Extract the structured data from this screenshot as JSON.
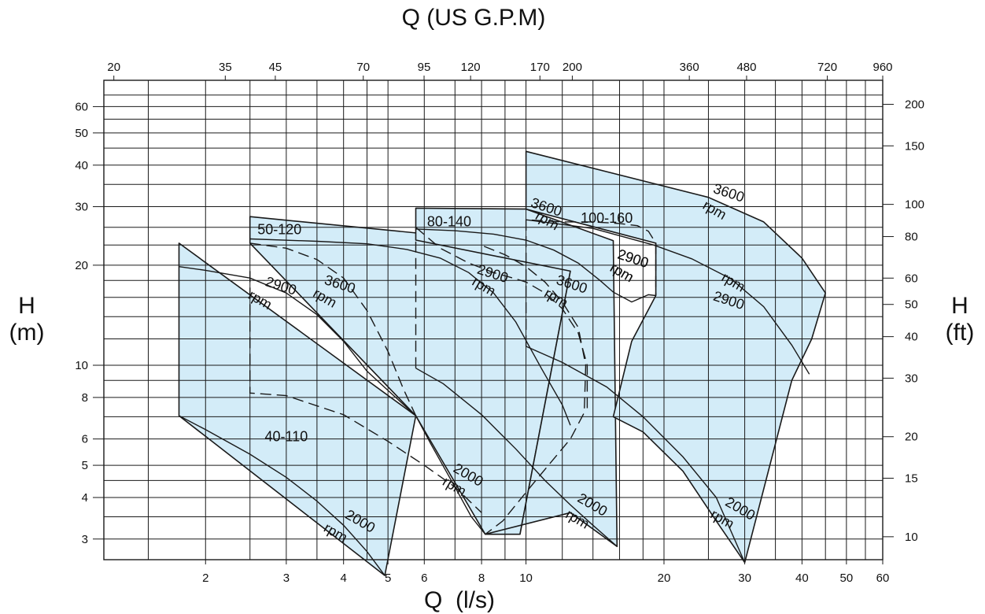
{
  "chart_data": {
    "type": "line",
    "title": "Q (US G.P.M)",
    "xlabel": "Q  (l/s)",
    "ylabel_left": "H",
    "ylabel_left_unit": "(m)",
    "ylabel_right": "H",
    "ylabel_right_unit": "(ft)",
    "x_scale": "log",
    "y_scale": "log",
    "xlim": [
      1.2,
      60
    ],
    "ylim": [
      2.6,
      72
    ],
    "grid": true,
    "fill_color": "#d3ecf8",
    "line_color": "#1a1a1a",
    "x_bottom_ticks": [
      "2",
      "3",
      "4",
      "5",
      "6",
      "8",
      "10",
      "20",
      "30",
      "40",
      "50",
      "60"
    ],
    "x_top_ticks": [
      "20",
      "35",
      "45",
      "70",
      "95",
      "120",
      "170",
      "200",
      "360",
      "480",
      "720",
      "960"
    ],
    "y_left_ticks": [
      "3",
      "4",
      "5",
      "6",
      "8",
      "10",
      "20",
      "30",
      "40",
      "50",
      "60"
    ],
    "y_right_ticks": [
      "10",
      "15",
      "20",
      "30",
      "40",
      "50",
      "60",
      "80",
      "100",
      "150",
      "200"
    ],
    "models": [
      {
        "name": "40-110",
        "label": "40-110",
        "region": [
          [
            1.75,
            23.3
          ],
          [
            5.75,
            7.05
          ],
          [
            4.92,
            2.33
          ],
          [
            1.75,
            7.05
          ]
        ],
        "curves": [
          {
            "speed": "3600",
            "style": "dashed",
            "points": [
              [
                2.5,
                23.3
              ],
              [
                3.0,
                22.5
              ],
              [
                3.5,
                20.8
              ],
              [
                4.0,
                18.3
              ],
              [
                4.5,
                14.6
              ],
              [
                5.0,
                11.0
              ],
              [
                5.4,
                8.5
              ],
              [
                5.75,
                7.05
              ]
            ]
          },
          {
            "speed": "2900",
            "style": "solid",
            "points": [
              [
                1.75,
                19.8
              ],
              [
                2.0,
                19.3
              ],
              [
                2.5,
                18.3
              ],
              [
                3.0,
                16.5
              ],
              [
                3.5,
                14.2
              ],
              [
                4.0,
                11.8
              ],
              [
                4.5,
                9.6
              ],
              [
                5.0,
                8.4
              ],
              [
                5.75,
                7.05
              ]
            ]
          },
          {
            "speed": "2000",
            "style": "solid",
            "points": [
              [
                1.75,
                7.05
              ],
              [
                2.0,
                6.4
              ],
              [
                2.5,
                5.4
              ],
              [
                3.0,
                4.6
              ],
              [
                3.5,
                3.9
              ],
              [
                4.0,
                3.3
              ],
              [
                4.5,
                2.75
              ],
              [
                4.92,
                2.33
              ]
            ]
          }
        ],
        "speed_labels": [
          {
            "text": "3600",
            "x": 3.9,
            "y": 17.0
          },
          {
            "text": "rpm",
            "x": 3.6,
            "y": 15.5
          },
          {
            "text": "2900",
            "x": 2.9,
            "y": 16.8
          },
          {
            "text": "rpm",
            "x": 2.6,
            "y": 15.3
          },
          {
            "text": "2000",
            "x": 4.3,
            "y": 3.3
          },
          {
            "text": "rpm",
            "x": 3.8,
            "y": 3.05
          }
        ]
      },
      {
        "name": "50-120",
        "label": "50-120",
        "region": [
          [
            2.5,
            28.0
          ],
          [
            8.3,
            23.8
          ],
          [
            12.5,
            19.2
          ],
          [
            9.7,
            3.1
          ],
          [
            8.15,
            3.1
          ],
          [
            5.75,
            7.05
          ],
          [
            2.5,
            23.3
          ]
        ],
        "curves": [
          {
            "speed": "3600",
            "style": "dashed",
            "points": [
              [
                8.1,
                22.8
              ],
              [
                9.0,
                21.5
              ],
              [
                10.0,
                19.8
              ],
              [
                11.0,
                17.8
              ],
              [
                12.0,
                15.5
              ],
              [
                13.0,
                13.0
              ],
              [
                13.5,
                10.0
              ],
              [
                13.4,
                7.2
              ],
              [
                12.5,
                6.0
              ],
              [
                10.5,
                4.5
              ],
              [
                8.9,
                3.4
              ],
              [
                8.15,
                3.1
              ]
            ]
          },
          {
            "speed": "2900",
            "style": "solid",
            "points": [
              [
                2.5,
                24.0
              ],
              [
                3.5,
                23.6
              ],
              [
                4.5,
                23.2
              ],
              [
                5.5,
                22.3
              ],
              [
                6.5,
                21.0
              ],
              [
                7.5,
                19.0
              ],
              [
                8.5,
                16.5
              ],
              [
                9.5,
                13.5
              ],
              [
                10.8,
                9.8
              ],
              [
                12.0,
                7.6
              ],
              [
                12.5,
                6.6
              ]
            ]
          },
          {
            "speed": "2000",
            "style": "solid",
            "points": [
              [
                5.75,
                7.05
              ],
              [
                6.2,
                5.8
              ],
              [
                7.0,
                4.3
              ],
              [
                7.6,
                3.5
              ],
              [
                8.15,
                3.1
              ]
            ]
          }
        ],
        "dashed_boundary": [
          [
            2.5,
            19.2
          ],
          [
            2.5,
            8.25
          ],
          [
            3.0,
            8.1
          ],
          [
            4.0,
            7.1
          ],
          [
            5.0,
            5.9
          ],
          [
            6.0,
            5.0
          ],
          [
            7.0,
            4.3
          ],
          [
            8.0,
            3.6
          ]
        ],
        "speed_labels": [
          {
            "text": "2900",
            "x": 8.4,
            "y": 18.3
          },
          {
            "text": "rpm",
            "x": 8.0,
            "y": 16.8
          },
          {
            "text": "2000",
            "x": 7.4,
            "y": 4.55
          },
          {
            "text": "rpm",
            "x": 6.9,
            "y": 4.2
          }
        ]
      },
      {
        "name": "80-140",
        "label": "80-140",
        "region": [
          [
            5.75,
            29.7
          ],
          [
            10.0,
            29.5
          ],
          [
            15.5,
            23.7
          ],
          [
            15.8,
            2.85
          ],
          [
            12.5,
            3.6
          ],
          [
            8.15,
            3.1
          ],
          [
            9.7,
            3.1
          ],
          [
            12.5,
            19.2
          ],
          [
            5.75,
            23.8
          ]
        ],
        "curves": [
          {
            "speed": "3600",
            "style": "dashed",
            "points": [
              [
                5.75,
                26.0
              ],
              [
                6.5,
                22.5
              ],
              [
                7.5,
                20.3
              ],
              [
                8.5,
                19.0
              ],
              [
                9.5,
                18.2
              ],
              [
                10.0,
                17.8
              ],
              [
                11.0,
                16.5
              ],
              [
                12.0,
                14.8
              ],
              [
                13.0,
                12.5
              ],
              [
                13.6,
                10.0
              ],
              [
                13.6,
                7.2
              ]
            ]
          },
          {
            "speed": "2900",
            "style": "solid",
            "points": [
              [
                5.75,
                25.7
              ],
              [
                7.0,
                25.4
              ],
              [
                8.5,
                24.8
              ],
              [
                10.0,
                23.8
              ],
              [
                11.5,
                22.2
              ],
              [
                13.0,
                20.3
              ],
              [
                14.5,
                18.0
              ],
              [
                15.5,
                16.6
              ],
              [
                17.0,
                15.5
              ],
              [
                18.5,
                16.3
              ],
              [
                19.2,
                16.2
              ]
            ]
          },
          {
            "speed": "2000",
            "style": "solid",
            "points": [
              [
                5.75,
                9.8
              ],
              [
                6.6,
                8.8
              ],
              [
                8.0,
                7.1
              ],
              [
                9.5,
                5.6
              ],
              [
                11.0,
                4.5
              ],
              [
                12.5,
                3.8
              ],
              [
                14.0,
                3.3
              ],
              [
                15.8,
                2.85
              ]
            ]
          }
        ],
        "dashed_boundary": [
          [
            5.75,
            9.8
          ],
          [
            5.75,
            24.3
          ]
        ],
        "speed_labels": [
          {
            "text": "3600",
            "x": 12.5,
            "y": 17.0
          },
          {
            "text": "rpm",
            "x": 11.5,
            "y": 15.5
          },
          {
            "text": "2900",
            "x": 17.0,
            "y": 20.3
          },
          {
            "text": "rpm",
            "x": 16.0,
            "y": 18.5
          },
          {
            "text": "2000",
            "x": 13.8,
            "y": 3.7
          },
          {
            "text": "rpm",
            "x": 12.8,
            "y": 3.35
          }
        ]
      },
      {
        "name": "100-160",
        "label": "100-160",
        "region": [
          [
            10.0,
            44.0
          ],
          [
            25.0,
            32.0
          ],
          [
            33.0,
            27.0
          ],
          [
            40.0,
            21.0
          ],
          [
            45.0,
            16.5
          ],
          [
            42.0,
            12.0
          ],
          [
            38.0,
            9.0
          ],
          [
            30.0,
            2.55
          ],
          [
            26.0,
            3.4
          ],
          [
            22.0,
            4.8
          ],
          [
            18.0,
            6.3
          ],
          [
            15.5,
            7.0
          ],
          [
            17.0,
            11.8
          ],
          [
            19.2,
            16.2
          ],
          [
            19.2,
            23.3
          ],
          [
            10.0,
            29.5
          ]
        ],
        "curves": [
          {
            "speed": "3600",
            "style": "dashed",
            "points": [
              [
                10.0,
                11.4
              ],
              [
                10.0,
                27.4
              ],
              [
                12.0,
                27.0
              ],
              [
                14.0,
                27.0
              ],
              [
                16.0,
                26.7
              ],
              [
                17.5,
                26.3
              ],
              [
                18.5,
                25.3
              ],
              [
                19.2,
                23.3
              ],
              [
                19.2,
                16.2
              ]
            ]
          },
          {
            "speed": "2900",
            "style": "solid",
            "points": [
              [
                10.0,
                27.4
              ],
              [
                14.0,
                25.8
              ],
              [
                19.0,
                23.0
              ],
              [
                23.0,
                20.9
              ],
              [
                28.0,
                18.2
              ],
              [
                33.0,
                15.0
              ],
              [
                38.0,
                11.5
              ],
              [
                41.5,
                9.4
              ]
            ]
          },
          {
            "speed": "2000",
            "style": "solid",
            "points": [
              [
                10.0,
                11.4
              ],
              [
                12.0,
                10.2
              ],
              [
                15.0,
                8.6
              ],
              [
                18.0,
                7.0
              ],
              [
                22.0,
                5.3
              ],
              [
                26.0,
                4.0
              ],
              [
                30.0,
                2.55
              ]
            ]
          }
        ],
        "speed_labels": [
          {
            "text": "3600",
            "x": 11.0,
            "y": 29.0
          },
          {
            "text": "rpm",
            "x": 11.0,
            "y": 26.5
          },
          {
            "text": "3600",
            "x": 27.5,
            "y": 32.0
          },
          {
            "text": "rpm",
            "x": 25.5,
            "y": 28.5
          },
          {
            "text": "2900",
            "x": 17.0,
            "y": 20.3
          },
          {
            "text": "rpm",
            "x": 16.0,
            "y": 18.5
          },
          {
            "text": "rpm",
            "x": 28.0,
            "y": 17.3
          },
          {
            "text": "2900",
            "x": 27.5,
            "y": 15.2
          },
          {
            "text": "2000",
            "x": 29.0,
            "y": 3.6
          },
          {
            "text": "rpm",
            "x": 26.5,
            "y": 3.35
          }
        ]
      }
    ]
  }
}
